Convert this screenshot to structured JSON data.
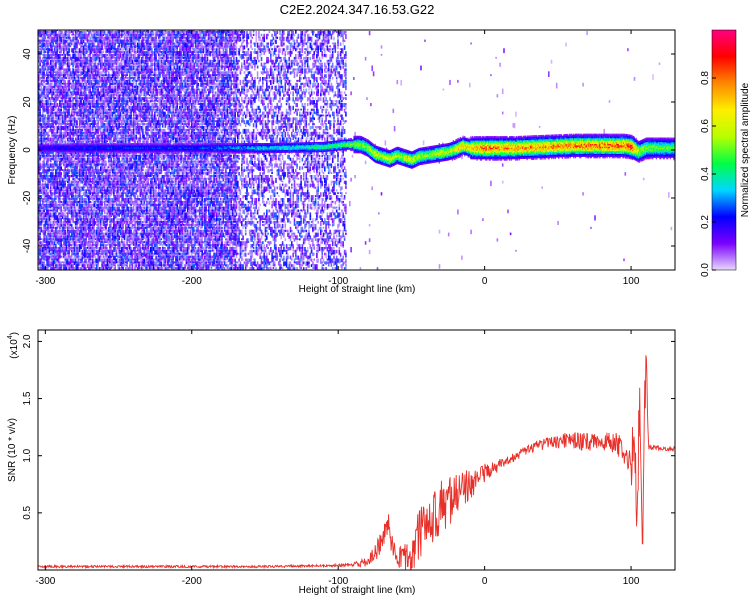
{
  "title": "C2E2.2024.347.16.53.G22",
  "chart_data": [
    {
      "type": "heatmap",
      "xlabel": "Height of straight line (km)",
      "ylabel": "Frequency (Hz)",
      "xlim": [
        -305,
        130
      ],
      "ylim": [
        -50,
        50
      ],
      "xticks": [
        -300,
        -200,
        -100,
        0,
        100
      ],
      "yticks": [
        -40,
        -20,
        0,
        20,
        40
      ],
      "colorbar": {
        "label": "Normalized spectral amplitude",
        "range": [
          0.0,
          1.0
        ],
        "ticks": [
          0.0,
          0.2,
          0.4,
          0.6,
          0.8
        ],
        "tick_labels": [
          "0.0",
          "0.2",
          "0.4",
          "0.6",
          "0.8"
        ],
        "colors": [
          "#e8d8ff",
          "#7a00ff",
          "#0000ff",
          "#00d8ff",
          "#00ff44",
          "#b8ff00",
          "#ffee00",
          "#ff8800",
          "#ff0000",
          "#ff0080"
        ]
      },
      "ridge": {
        "x": [
          -305,
          -260,
          -200,
          -150,
          -110,
          -95,
          -85,
          -80,
          -75,
          -70,
          -65,
          -60,
          -55,
          -50,
          -45,
          -40,
          -35,
          -30,
          -25,
          -20,
          -15,
          -10,
          -5,
          0,
          20,
          40,
          60,
          80,
          95,
          100,
          105,
          110,
          120,
          130
        ],
        "y": [
          0.5,
          0.5,
          0.5,
          0.5,
          1.0,
          2.0,
          2.0,
          0.5,
          -2.0,
          -3.0,
          -4.0,
          -2.5,
          -3.5,
          -4.5,
          -3.0,
          -2.5,
          -2.0,
          -1.5,
          -1.0,
          0.0,
          1.5,
          0.5,
          0.5,
          0.5,
          0.5,
          1.0,
          1.5,
          1.5,
          1.5,
          1.0,
          -1.0,
          0.5,
          0.5,
          0.5
        ],
        "amplitude": [
          0.2,
          0.25,
          0.25,
          0.35,
          0.45,
          0.5,
          0.55,
          0.6,
          0.65,
          0.6,
          0.65,
          0.6,
          0.6,
          0.65,
          0.6,
          0.55,
          0.6,
          0.65,
          0.6,
          0.7,
          0.75,
          0.7,
          0.8,
          0.85,
          0.8,
          0.8,
          0.82,
          0.85,
          0.85,
          0.9,
          0.6,
          0.55,
          0.5,
          0.5
        ]
      },
      "noise_region_x": [
        -305,
        -95
      ]
    },
    {
      "type": "line",
      "xlabel": "Height of straight line (km)",
      "ylabel": "SNR (10 * v/v)",
      "y_multiplier": "(x10",
      "y_multiplier_exp": "4",
      "y_multiplier_close": ")",
      "xlim": [
        -305,
        130
      ],
      "ylim": [
        0.0,
        2.1
      ],
      "xticks": [
        -300,
        -200,
        -100,
        0,
        100
      ],
      "yticks": [
        0.5,
        1.0,
        1.5,
        2.0
      ],
      "ytick_labels": [
        "0.5",
        "1.0",
        "1.5",
        "2.0"
      ],
      "series": [
        {
          "color": "#e8302a",
          "x": [
            -305,
            -250,
            -200,
            -150,
            -100,
            -90,
            -80,
            -75,
            -70,
            -66,
            -63,
            -60,
            -55,
            -50,
            -45,
            -40,
            -35,
            -30,
            -25,
            -20,
            -15,
            -10,
            -5,
            0,
            5,
            10,
            15,
            20,
            25,
            30,
            35,
            40,
            45,
            50,
            55,
            60,
            65,
            70,
            75,
            80,
            85,
            90,
            95,
            98,
            100,
            102,
            104,
            106,
            108,
            110,
            112,
            115,
            120,
            125,
            130
          ],
          "y": [
            0.03,
            0.03,
            0.03,
            0.03,
            0.04,
            0.05,
            0.07,
            0.15,
            0.25,
            0.4,
            0.2,
            0.12,
            0.1,
            0.15,
            0.3,
            0.4,
            0.45,
            0.55,
            0.6,
            0.65,
            0.7,
            0.75,
            0.8,
            0.85,
            0.88,
            0.92,
            0.96,
            0.99,
            1.02,
            1.05,
            1.08,
            1.1,
            1.12,
            1.12,
            1.13,
            1.13,
            1.12,
            1.12,
            1.13,
            1.12,
            1.12,
            1.1,
            1.05,
            0.95,
            0.85,
            1.3,
            0.4,
            1.6,
            0.2,
            1.9,
            1.07,
            1.07,
            1.07,
            1.06,
            1.06
          ],
          "noise": [
            0.01,
            0.01,
            0.01,
            0.01,
            0.01,
            0.02,
            0.04,
            0.08,
            0.12,
            0.12,
            0.1,
            0.08,
            0.12,
            0.2,
            0.22,
            0.22,
            0.24,
            0.24,
            0.22,
            0.2,
            0.18,
            0.14,
            0.1,
            0.08,
            0.06,
            0.05,
            0.04,
            0.04,
            0.04,
            0.04,
            0.05,
            0.05,
            0.05,
            0.06,
            0.07,
            0.08,
            0.08,
            0.08,
            0.08,
            0.08,
            0.09,
            0.1,
            0.12,
            0.15,
            0.2,
            0.3,
            0.3,
            0.3,
            0.3,
            0.3,
            0.02,
            0.02,
            0.02,
            0.02,
            0.02
          ]
        }
      ]
    }
  ]
}
